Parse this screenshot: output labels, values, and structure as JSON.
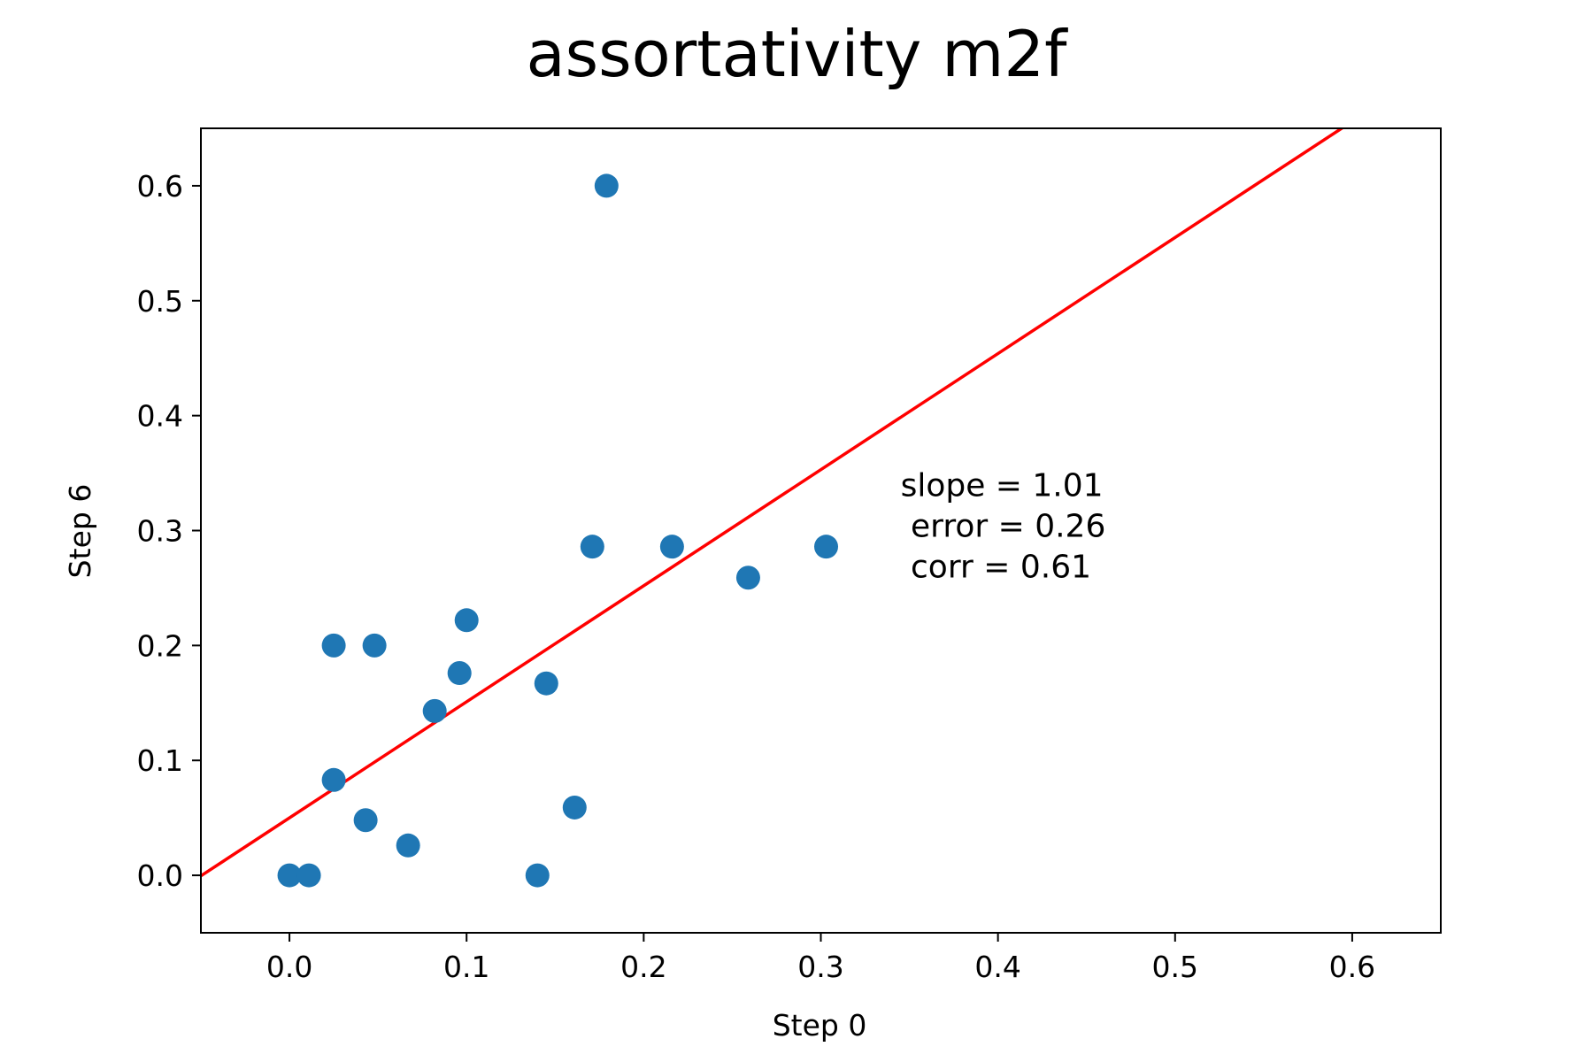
{
  "chart_data": {
    "type": "scatter",
    "title": "assortativity m2f",
    "xlabel": "Step 0",
    "ylabel": "Step 6",
    "xlim": [
      -0.05,
      0.65
    ],
    "ylim": [
      -0.05,
      0.65
    ],
    "xticks": [
      0.0,
      0.1,
      0.2,
      0.3,
      0.4,
      0.5,
      0.6
    ],
    "yticks": [
      0.0,
      0.1,
      0.2,
      0.3,
      0.4,
      0.5,
      0.6
    ],
    "xtick_labels": [
      "0.0",
      "0.1",
      "0.2",
      "0.3",
      "0.4",
      "0.5",
      "0.6"
    ],
    "ytick_labels": [
      "0.0",
      "0.1",
      "0.2",
      "0.3",
      "0.4",
      "0.5",
      "0.6"
    ],
    "grid": false,
    "points": [
      {
        "x": 0.0,
        "y": 0.0
      },
      {
        "x": 0.011,
        "y": 0.0
      },
      {
        "x": 0.025,
        "y": 0.2
      },
      {
        "x": 0.025,
        "y": 0.083
      },
      {
        "x": 0.043,
        "y": 0.048
      },
      {
        "x": 0.048,
        "y": 0.2
      },
      {
        "x": 0.067,
        "y": 0.026
      },
      {
        "x": 0.082,
        "y": 0.143
      },
      {
        "x": 0.096,
        "y": 0.176
      },
      {
        "x": 0.1,
        "y": 0.222
      },
      {
        "x": 0.14,
        "y": 0.0
      },
      {
        "x": 0.145,
        "y": 0.167
      },
      {
        "x": 0.161,
        "y": 0.059
      },
      {
        "x": 0.171,
        "y": 0.286
      },
      {
        "x": 0.179,
        "y": 0.6
      },
      {
        "x": 0.216,
        "y": 0.286
      },
      {
        "x": 0.259,
        "y": 0.259
      },
      {
        "x": 0.303,
        "y": 0.286
      }
    ],
    "point_color": "#1f77b4",
    "fit_line": {
      "slope": 1.01,
      "intercept": 0.05,
      "color": "#ff0000"
    },
    "annotation": {
      "lines": [
        "slope = 1.01",
        " error = 0.26",
        " corr = 0.61"
      ],
      "x": 0.345,
      "y": 0.33
    }
  }
}
